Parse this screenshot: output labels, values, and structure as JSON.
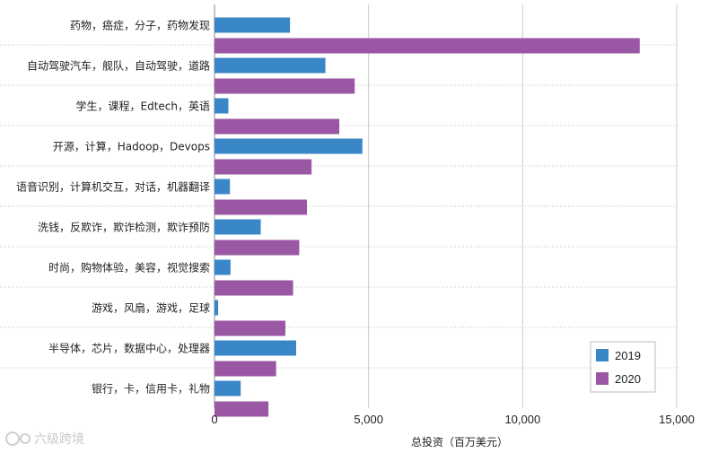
{
  "chart_data": {
    "type": "bar",
    "orientation": "horizontal",
    "categories": [
      "药物，癌症，分子，药物发现",
      "自动驾驶汽车，舰队，自动驾驶，道路",
      "学生，课程，Edtech，英语",
      "开源，计算，Hadoop，Devops",
      "语音识别，计算机交互，对话，机器翻译",
      "洗钱，反欺诈，欺诈检测，欺诈预防",
      "时尚，购物体验，美容，视觉搜索",
      "游戏，风扇，游戏，足球",
      "半导体，芯片，数据中心，处理器",
      "银行，卡，信用卡，礼物"
    ],
    "series": [
      {
        "name": "2019",
        "color": "#3a87c8",
        "values": [
          2450,
          3600,
          450,
          4800,
          500,
          1500,
          520,
          120,
          2650,
          850
        ]
      },
      {
        "name": "2020",
        "color": "#9a57a3",
        "values": [
          13800,
          4550,
          4050,
          3150,
          3000,
          2750,
          2550,
          2300,
          2000,
          1750
        ]
      }
    ],
    "xlim": [
      0,
      15000
    ],
    "xticks": [
      0,
      5000,
      10000,
      15000
    ],
    "xtick_labels": [
      "0",
      "5,000",
      "10,000",
      "15,000"
    ],
    "xlabel": "总投资（百万美元）",
    "grid": true,
    "legend": "bottom-right"
  },
  "watermark": {
    "text": "六级跨境"
  }
}
